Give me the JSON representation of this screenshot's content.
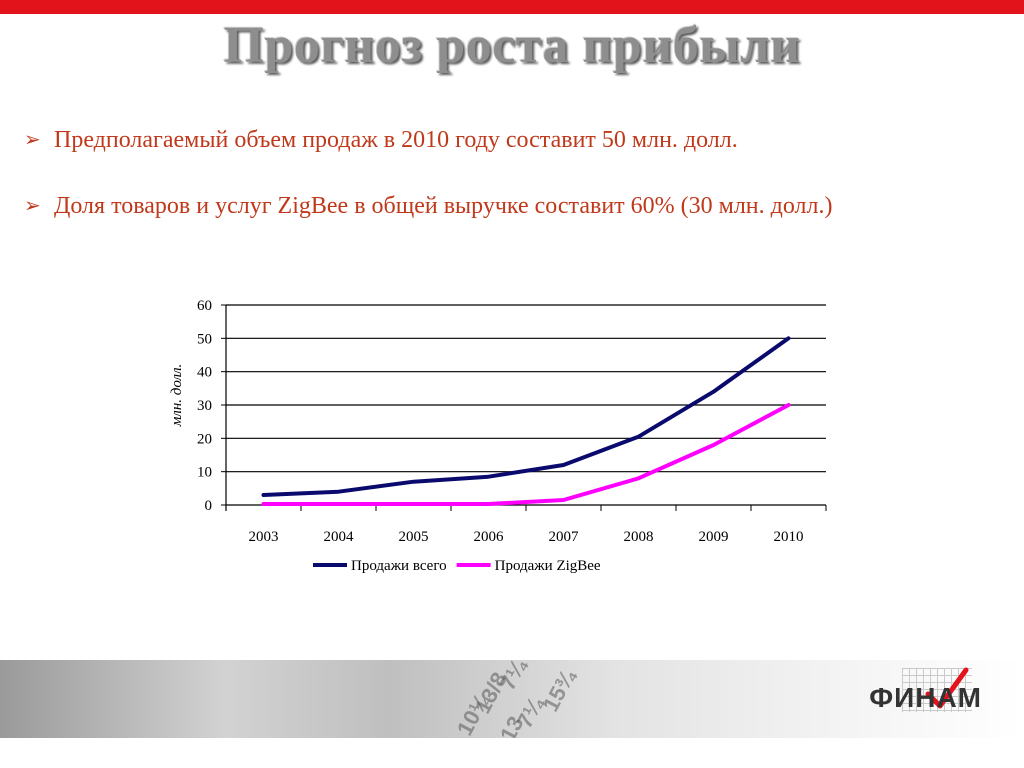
{
  "slide": {
    "title": "Прогноз роста прибыли",
    "bullets": [
      "Предполагаемый объем продаж в 2010 году составит 50 млн. долл.",
      "Доля товаров и услуг ZigBee в общей выручке составит 60% (30 млн. долл.)"
    ],
    "bullet_marker": "➢",
    "colors": {
      "accent": "#e3131b",
      "text": "#c0391b",
      "title": "#8e8e8e"
    }
  },
  "footer": {
    "logo_text": "ФИНАМ",
    "decorations": [
      "7¼",
      "13/8",
      "10¼",
      "15¾",
      "7¼",
      "13"
    ],
    "check_icon": "red-check-icon"
  },
  "chart_data": {
    "type": "line",
    "categories": [
      "2003",
      "2004",
      "2005",
      "2006",
      "2007",
      "2008",
      "2009",
      "2010"
    ],
    "series": [
      {
        "name": "Продажи всего",
        "values": [
          3,
          4,
          7,
          8.5,
          12,
          20.5,
          34,
          50
        ],
        "color": "#0a0a6e"
      },
      {
        "name": "Продажи ZigBee",
        "values": [
          0.3,
          0.3,
          0.3,
          0.3,
          1.5,
          8,
          18,
          30
        ],
        "color": "#ff00ff"
      }
    ],
    "ylabel": "млн. долл.",
    "ylim": [
      0,
      60
    ],
    "yticks": [
      0,
      10,
      20,
      30,
      40,
      50,
      60
    ],
    "grid": true,
    "legend": "bottom"
  }
}
